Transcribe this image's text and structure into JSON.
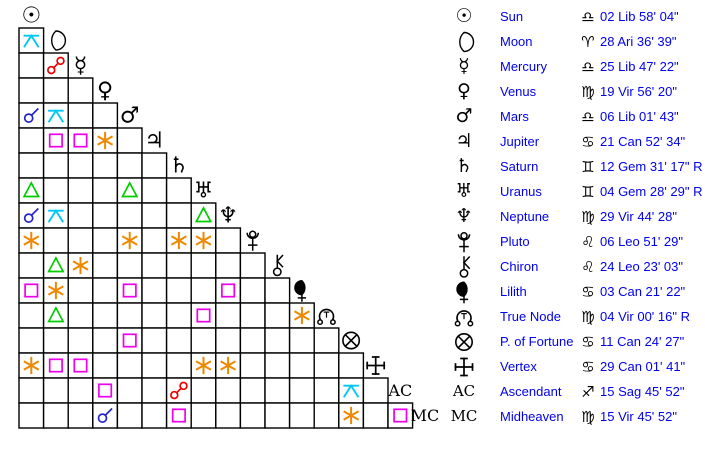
{
  "colors": {
    "background": "#ffffff",
    "grid_line": "#000000",
    "glyph_black": "#000000",
    "link_blue": "#0000ee",
    "aspects": {
      "conjunction": "#2222cc",
      "opposition": "#ee0000",
      "square": "#ee00ee",
      "trine": "#00cc00",
      "sextile": "#ee8800",
      "quincunx": "#00c8f0"
    }
  },
  "grid": {
    "order": [
      "sun",
      "moon",
      "mercury",
      "venus",
      "mars",
      "jupiter",
      "saturn",
      "uranus",
      "neptune",
      "pluto",
      "chiron",
      "lilith",
      "truenode",
      "fortune",
      "vertex",
      "ascendant",
      "midheaven"
    ],
    "diagonal_text": {
      "ascendant": "AC",
      "midheaven": "MC"
    },
    "aspects": [
      [
        "moon",
        "sun",
        "quincunx"
      ],
      [
        "mercury",
        "moon",
        "opposition"
      ],
      [
        "mars",
        "sun",
        "conjunction"
      ],
      [
        "mars",
        "moon",
        "quincunx"
      ],
      [
        "jupiter",
        "moon",
        "square"
      ],
      [
        "jupiter",
        "mercury",
        "square"
      ],
      [
        "jupiter",
        "venus",
        "sextile"
      ],
      [
        "uranus",
        "sun",
        "trine"
      ],
      [
        "uranus",
        "mars",
        "trine"
      ],
      [
        "neptune",
        "sun",
        "conjunction"
      ],
      [
        "neptune",
        "moon",
        "quincunx"
      ],
      [
        "neptune",
        "uranus",
        "trine"
      ],
      [
        "pluto",
        "sun",
        "sextile"
      ],
      [
        "pluto",
        "mars",
        "sextile"
      ],
      [
        "pluto",
        "saturn",
        "sextile"
      ],
      [
        "pluto",
        "uranus",
        "sextile"
      ],
      [
        "chiron",
        "moon",
        "trine"
      ],
      [
        "chiron",
        "mercury",
        "sextile"
      ],
      [
        "lilith",
        "sun",
        "square"
      ],
      [
        "lilith",
        "moon",
        "sextile"
      ],
      [
        "lilith",
        "mars",
        "square"
      ],
      [
        "lilith",
        "neptune",
        "square"
      ],
      [
        "truenode",
        "moon",
        "trine"
      ],
      [
        "truenode",
        "uranus",
        "square"
      ],
      [
        "truenode",
        "lilith",
        "sextile"
      ],
      [
        "fortune",
        "mars",
        "square"
      ],
      [
        "vertex",
        "sun",
        "sextile"
      ],
      [
        "vertex",
        "moon",
        "square"
      ],
      [
        "vertex",
        "mercury",
        "square"
      ],
      [
        "vertex",
        "uranus",
        "sextile"
      ],
      [
        "vertex",
        "neptune",
        "sextile"
      ],
      [
        "ascendant",
        "venus",
        "square"
      ],
      [
        "ascendant",
        "saturn",
        "opposition"
      ],
      [
        "ascendant",
        "fortune",
        "quincunx"
      ],
      [
        "midheaven",
        "venus",
        "conjunction"
      ],
      [
        "midheaven",
        "saturn",
        "square"
      ],
      [
        "midheaven",
        "fortune",
        "sextile"
      ],
      [
        "midheaven",
        "ascendant",
        "square"
      ]
    ]
  },
  "table": {
    "rows": [
      {
        "id": "sun",
        "name": "Sun",
        "sign": "libra",
        "position": "02 Lib 58' 04\""
      },
      {
        "id": "moon",
        "name": "Moon",
        "sign": "aries",
        "position": "28 Ari 36' 39\""
      },
      {
        "id": "mercury",
        "name": "Mercury",
        "sign": "libra",
        "position": "25 Lib 47' 22\""
      },
      {
        "id": "venus",
        "name": "Venus",
        "sign": "virgo",
        "position": "19 Vir 56' 20\""
      },
      {
        "id": "mars",
        "name": "Mars",
        "sign": "libra",
        "position": "06 Lib 01' 43\""
      },
      {
        "id": "jupiter",
        "name": "Jupiter",
        "sign": "cancer",
        "position": "21 Can 52' 34\""
      },
      {
        "id": "saturn",
        "name": "Saturn",
        "sign": "gemini",
        "position": "12 Gem 31' 17\" R"
      },
      {
        "id": "uranus",
        "name": "Uranus",
        "sign": "gemini",
        "position": "04 Gem 28' 29\" R"
      },
      {
        "id": "neptune",
        "name": "Neptune",
        "sign": "virgo",
        "position": "29 Vir 44' 28\""
      },
      {
        "id": "pluto",
        "name": "Pluto",
        "sign": "leo",
        "position": "06 Leo 51' 29\""
      },
      {
        "id": "chiron",
        "name": "Chiron",
        "sign": "leo",
        "position": "24 Leo 23' 03\""
      },
      {
        "id": "lilith",
        "name": "Lilith",
        "sign": "cancer",
        "position": "03 Can 21' 22\""
      },
      {
        "id": "truenode",
        "name": "True Node",
        "sign": "virgo",
        "position": "04 Vir 00' 16\" R"
      },
      {
        "id": "fortune",
        "name": "P. of Fortune",
        "sign": "cancer",
        "position": "11 Can 24' 27\""
      },
      {
        "id": "vertex",
        "name": "Vertex",
        "sign": "cancer",
        "position": "29 Can 01' 41\""
      },
      {
        "id": "ascendant",
        "name": "Ascendant",
        "sign": "sagittarius",
        "position": "15 Sag 45' 52\""
      },
      {
        "id": "midheaven",
        "name": "Midheaven",
        "sign": "virgo",
        "position": "15 Vir 45' 52\""
      }
    ]
  },
  "glyphs": {
    "unicode": {
      "sun": "☉",
      "mercury": "☿",
      "venus": "♀",
      "mars": "♂",
      "jupiter": "♃",
      "saturn": "♄",
      "uranus": "♅",
      "neptune": "♆"
    },
    "signs": {
      "libra": "♎",
      "aries": "♈",
      "virgo": "♍",
      "cancer": "♋",
      "gemini": "♊",
      "leo": "♌",
      "sagittarius": "♐"
    }
  }
}
